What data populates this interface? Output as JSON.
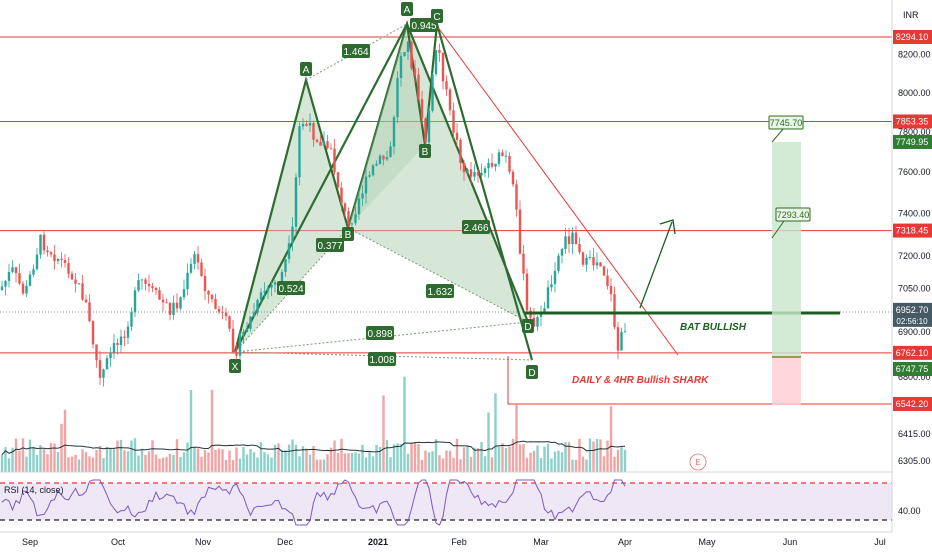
{
  "currency": "INR",
  "chart_data": {
    "type": "candlestick",
    "x_axis": {
      "ticks": [
        "Sep",
        "Oct",
        "Nov",
        "Dec",
        "2021",
        "Feb",
        "Mar",
        "Apr",
        "May",
        "Jun",
        "Jul"
      ]
    },
    "y_axis": {
      "ticks": [
        8200.0,
        8000.0,
        7800.0,
        7600.0,
        7400.0,
        7200.0,
        7050.0,
        6900.0,
        6800.0,
        6415.0,
        6305.0
      ],
      "scale": "log",
      "range": [
        6250,
        8450
      ]
    },
    "horizontal_levels": [
      {
        "value": 8294.1,
        "label": "8294.10",
        "color": "#e53935"
      },
      {
        "value": 7853.35,
        "label": "7853.35",
        "color": "#e53935"
      },
      {
        "value": 7318.45,
        "label": "7318.45",
        "color": "#e53935"
      },
      {
        "value": 6762.1,
        "label": "6762.10",
        "color": "#e53935"
      },
      {
        "value": 6542.2,
        "label": "6542.20",
        "color": "#e53935"
      }
    ],
    "price_labels": [
      {
        "value": 7749.95,
        "label": "7749.95",
        "color": "#2e7d32"
      },
      {
        "value": 6952.7,
        "label": "6952.70",
        "color": "#455a64"
      },
      {
        "value": 6747.75,
        "label": "6747.75",
        "color": "#2e7d32"
      }
    ],
    "countdown": "02:56:10",
    "targets": [
      "7745.70",
      "7293.40"
    ],
    "ratios": [
      "1.464",
      "0.945",
      "0.377",
      "2.466",
      "0.524",
      "1.632",
      "0.898",
      "1.008"
    ],
    "pattern_points": [
      "X",
      "A",
      "B",
      "C",
      "D",
      "A",
      "C",
      "D",
      "B"
    ],
    "annotations": [
      "BAT BULLISH",
      "DAILY & 4HR Bullish SHARK"
    ],
    "indicator": {
      "name": "RSI (14, close)",
      "value_label": "40.00"
    },
    "colors": {
      "up": "#26a69a",
      "down": "#ef5350",
      "pattern": "#2e6b30",
      "level": "#e53935"
    }
  }
}
